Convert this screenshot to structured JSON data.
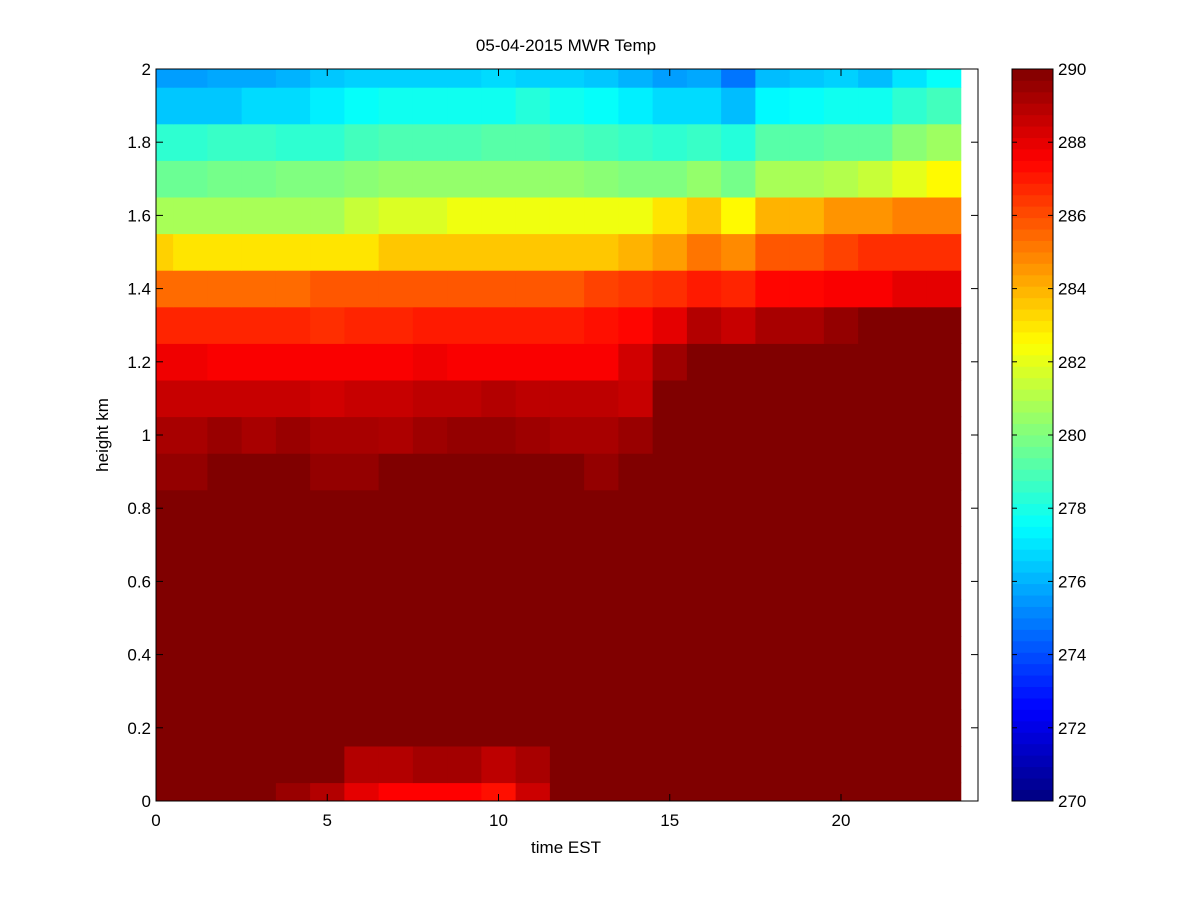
{
  "chart_data": {
    "type": "heatmap",
    "title": "05-04-2015 MWR Temp",
    "xlabel": "time EST",
    "ylabel": "height km",
    "xlim": [
      0,
      24
    ],
    "ylim": [
      0,
      2
    ],
    "x_ticks": [
      0,
      5,
      10,
      15,
      20
    ],
    "y_ticks": [
      0,
      0.2,
      0.4,
      0.6,
      0.8,
      1,
      1.2,
      1.4,
      1.6,
      1.8,
      2
    ],
    "x_tick_labels": [
      "0",
      "5",
      "10",
      "15",
      "20"
    ],
    "y_tick_labels": [
      "0",
      "0.2",
      "0.4",
      "0.6",
      "0.8",
      "1",
      "1.2",
      "1.4",
      "1.6",
      "1.8",
      "2"
    ],
    "x_centers": [
      0,
      1,
      2,
      3,
      4,
      5,
      6,
      7,
      8,
      9,
      10,
      11,
      12,
      13,
      14,
      15,
      16,
      17,
      18,
      19,
      20,
      21,
      22,
      23
    ],
    "y_centers": [
      0,
      0.1,
      0.2,
      0.3,
      0.4,
      0.5,
      0.6,
      0.7,
      0.8,
      0.9,
      1.0,
      1.1,
      1.2,
      1.3,
      1.4,
      1.5,
      1.6,
      1.7,
      1.8,
      1.9,
      2.0
    ],
    "colorbar": {
      "colormap": "jet",
      "clim": [
        270,
        290
      ],
      "ticks": [
        270,
        272,
        274,
        276,
        278,
        280,
        282,
        284,
        286,
        288,
        290
      ],
      "tick_labels": [
        "270",
        "272",
        "274",
        "276",
        "278",
        "280",
        "282",
        "284",
        "286",
        "288",
        "290"
      ]
    },
    "values": [
      [
        290,
        290,
        290,
        290,
        289.5,
        289,
        288,
        287.5,
        287.5,
        287.5,
        287.2,
        288.5,
        290,
        290,
        290,
        290,
        290,
        290,
        290,
        290,
        290,
        290,
        290,
        290
      ],
      [
        290,
        290,
        290,
        290,
        290,
        290,
        289,
        289,
        289.3,
        289.3,
        288.8,
        289.2,
        290,
        290,
        290,
        290,
        290,
        290,
        290,
        290,
        290,
        290,
        290,
        290
      ],
      [
        290,
        290,
        290,
        290,
        290,
        290,
        290,
        290,
        290,
        290,
        290,
        290,
        290,
        290,
        290,
        290,
        290,
        290,
        290,
        290,
        290,
        290,
        290,
        290
      ],
      [
        290,
        290,
        290,
        290,
        290,
        290,
        290,
        290,
        290,
        290,
        290,
        290,
        290,
        290,
        290,
        290,
        290,
        290,
        290,
        290,
        290,
        290,
        290,
        290
      ],
      [
        290,
        290,
        290,
        290,
        290,
        290,
        290,
        290,
        290,
        290,
        290,
        290,
        290,
        290,
        290,
        290,
        290,
        290,
        290,
        290,
        290,
        290,
        290,
        290
      ],
      [
        290,
        290,
        290,
        290,
        290,
        290,
        290,
        290,
        290,
        290,
        290,
        290,
        290,
        290,
        290,
        290,
        290,
        290,
        290,
        290,
        290,
        290,
        290,
        290
      ],
      [
        290,
        290,
        290,
        290,
        290,
        290,
        290,
        290,
        290,
        290,
        290,
        290,
        290,
        290,
        290,
        290,
        290,
        290,
        290,
        290,
        290,
        290,
        290,
        290
      ],
      [
        290,
        290,
        290,
        290,
        290,
        290,
        290,
        290,
        290,
        290,
        290,
        290,
        290,
        290,
        290,
        290,
        290,
        290,
        290,
        290,
        290,
        290,
        290,
        290
      ],
      [
        290,
        290,
        290,
        290,
        290,
        290,
        290,
        290,
        290,
        290,
        290,
        290,
        290,
        290,
        290,
        290,
        290,
        290,
        290,
        290,
        290,
        290,
        290,
        290
      ],
      [
        289.6,
        289.6,
        290,
        290,
        290,
        289.6,
        289.6,
        290,
        290,
        290,
        290,
        290,
        290,
        289.6,
        290,
        290,
        290,
        290,
        290,
        290,
        290,
        290,
        290,
        290
      ],
      [
        289.2,
        289.2,
        289.5,
        289.2,
        289.5,
        289.2,
        289.2,
        289.1,
        289.4,
        289.6,
        289.6,
        289.4,
        289.2,
        289.2,
        289.5,
        290,
        290,
        290,
        290,
        290,
        290,
        290,
        290,
        290
      ],
      [
        288.6,
        288.6,
        288.6,
        288.6,
        288.6,
        288.4,
        288.6,
        288.6,
        288.8,
        288.8,
        289.0,
        288.8,
        288.8,
        288.8,
        288.6,
        290,
        290,
        290,
        290,
        290,
        290,
        290,
        290,
        290
      ],
      [
        287.8,
        287.8,
        287.6,
        287.6,
        287.6,
        287.6,
        287.6,
        287.6,
        287.8,
        287.6,
        287.6,
        287.6,
        287.6,
        287.6,
        288.4,
        289.4,
        290,
        290,
        290,
        290,
        290,
        290,
        290,
        290
      ],
      [
        286.8,
        286.8,
        286.8,
        286.8,
        286.8,
        286.6,
        286.8,
        286.8,
        287.0,
        287.0,
        287.0,
        287.0,
        287.0,
        287.2,
        287.4,
        288.0,
        289.0,
        288.6,
        289.2,
        289.2,
        289.6,
        290,
        290,
        290
      ],
      [
        285.4,
        285.4,
        285.4,
        285.4,
        285.4,
        285.8,
        285.8,
        285.8,
        285.8,
        285.8,
        285.8,
        285.8,
        285.8,
        286.2,
        286.4,
        286.6,
        287.0,
        286.8,
        287.4,
        287.4,
        287.6,
        287.6,
        288.0,
        288.0
      ],
      [
        283.4,
        283.0,
        283.0,
        283.0,
        283.0,
        283.0,
        283.0,
        283.6,
        283.6,
        283.6,
        283.6,
        283.6,
        283.6,
        283.6,
        284.0,
        284.4,
        285.2,
        284.8,
        285.8,
        285.8,
        286.2,
        286.6,
        286.6,
        286.6
      ],
      [
        280.8,
        280.8,
        280.8,
        280.8,
        280.8,
        280.8,
        281.4,
        281.8,
        281.8,
        282.2,
        282.2,
        282.2,
        282.2,
        282.2,
        282.2,
        283.0,
        283.6,
        282.6,
        284.0,
        284.0,
        284.6,
        284.6,
        285.0,
        285.0
      ],
      [
        279.6,
        279.6,
        279.8,
        279.8,
        280.0,
        280.0,
        280.2,
        280.4,
        280.4,
        280.4,
        280.4,
        280.4,
        280.4,
        280.2,
        280.0,
        280.0,
        280.4,
        279.8,
        280.8,
        280.8,
        281.0,
        281.4,
        282.0,
        282.6
      ],
      [
        278.4,
        278.4,
        278.6,
        278.6,
        278.4,
        278.4,
        278.8,
        279.0,
        279.0,
        279.0,
        279.2,
        279.2,
        279.0,
        278.8,
        278.6,
        278.4,
        278.6,
        278.2,
        279.2,
        279.2,
        279.4,
        279.4,
        280.2,
        280.6
      ],
      [
        276.4,
        276.4,
        276.4,
        276.8,
        276.8,
        277.2,
        277.6,
        277.8,
        277.8,
        277.8,
        277.8,
        278.2,
        277.8,
        277.6,
        277.2,
        276.8,
        276.8,
        276.2,
        277.4,
        277.6,
        277.8,
        277.8,
        278.4,
        278.8
      ],
      [
        275.6,
        275.6,
        275.8,
        275.8,
        276.0,
        276.4,
        276.6,
        276.6,
        276.6,
        276.6,
        276.8,
        276.6,
        276.6,
        276.4,
        276.0,
        275.6,
        275.8,
        274.8,
        276.2,
        276.4,
        276.6,
        276.2,
        277.0,
        277.6
      ]
    ]
  }
}
